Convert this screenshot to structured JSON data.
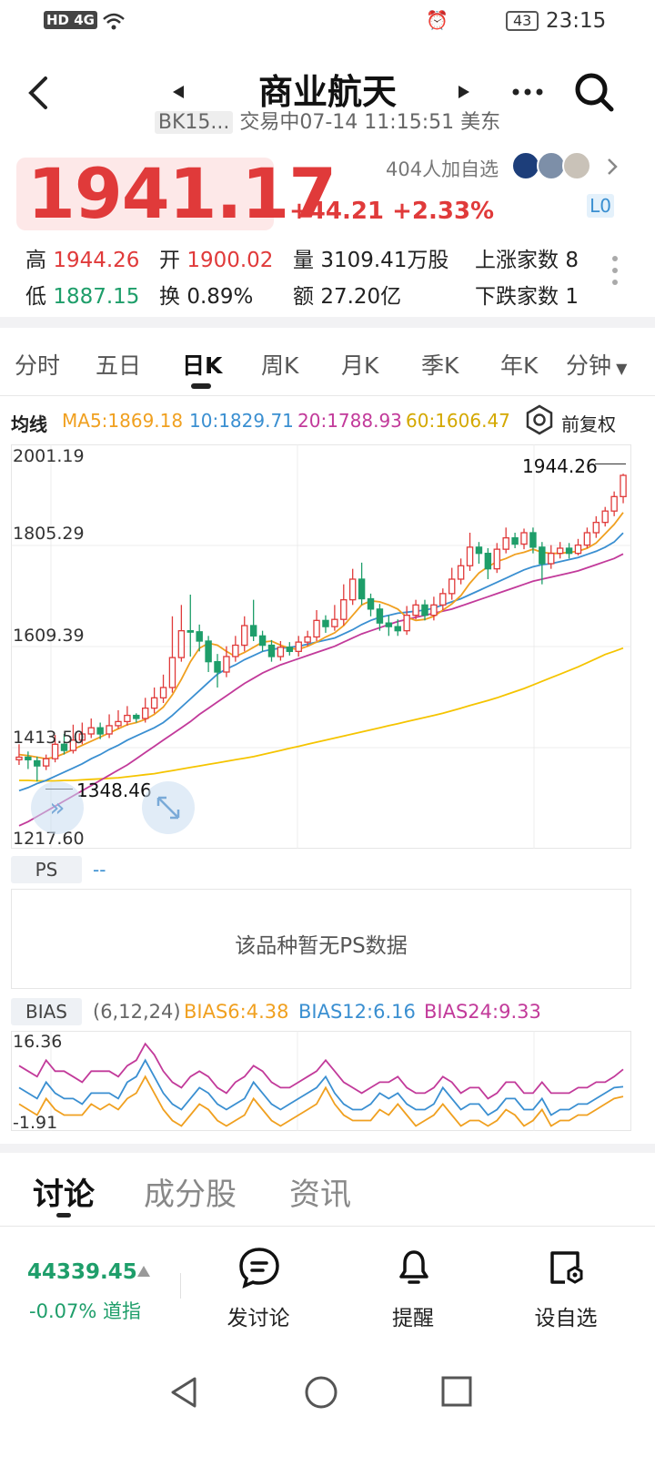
{
  "status_bar": {
    "network": "HD 4G",
    "battery": "43",
    "time": "23:15"
  },
  "header": {
    "title": "商业航天",
    "code": "BK15...",
    "subtitle": "交易中07-14 11:15:51 美东"
  },
  "quote": {
    "price": "1941.17",
    "change": "+44.21",
    "change_pct": "+2.33%",
    "watchers": "404人加自选",
    "level": "L0",
    "high_label": "高",
    "high": "1944.26",
    "open_label": "开",
    "open": "1900.02",
    "volume_label": "量",
    "volume": "3109.41万股",
    "up_label": "上涨家数",
    "up_count": "8",
    "low_label": "低",
    "low": "1887.15",
    "turnover_label": "换",
    "turnover": "0.89%",
    "amount_label": "额",
    "amount": "27.20亿",
    "down_label": "下跌家数",
    "down_count": "1"
  },
  "period_tabs": [
    "分时",
    "五日",
    "日K",
    "周K",
    "月K",
    "季K",
    "年K",
    "分钟"
  ],
  "active_period": "日K",
  "ma_legend": {
    "label": "均线",
    "ma5": "MA5:1869.18",
    "ma10": "10:1829.71",
    "ma20": "20:1788.93",
    "ma60": "60:1606.47",
    "adjust": "前复权"
  },
  "colors": {
    "up": "#e03a3a",
    "down": "#1e9e6a",
    "ma5": "#f0a020",
    "ma10": "#3a8fd1",
    "ma20": "#c23a9a",
    "ma60": "#f5c400"
  },
  "chart_data": {
    "type": "candlestick",
    "y_ticks": [
      "2001.19",
      "1805.29",
      "1609.39",
      "1413.50",
      "1217.60"
    ],
    "ylim": [
      1217.6,
      2001.19
    ],
    "max_label": "1944.26",
    "min_label": "1348.46",
    "candles": [
      [
        1390,
        1395,
        1380,
        1420
      ],
      [
        1395,
        1390,
        1372,
        1406
      ],
      [
        1388,
        1378,
        1348,
        1396
      ],
      [
        1378,
        1392,
        1370,
        1400
      ],
      [
        1392,
        1420,
        1385,
        1438
      ],
      [
        1420,
        1408,
        1400,
        1440
      ],
      [
        1408,
        1428,
        1402,
        1458
      ],
      [
        1428,
        1440,
        1420,
        1462
      ],
      [
        1440,
        1452,
        1432,
        1470
      ],
      [
        1452,
        1440,
        1430,
        1462
      ],
      [
        1440,
        1456,
        1432,
        1478
      ],
      [
        1456,
        1464,
        1450,
        1486
      ],
      [
        1464,
        1476,
        1456,
        1494
      ],
      [
        1476,
        1470,
        1462,
        1480
      ],
      [
        1470,
        1490,
        1462,
        1510
      ],
      [
        1490,
        1510,
        1480,
        1530
      ],
      [
        1510,
        1530,
        1500,
        1555
      ],
      [
        1530,
        1588,
        1520,
        1668
      ],
      [
        1588,
        1640,
        1580,
        1690
      ],
      [
        1640,
        1638,
        1590,
        1710
      ],
      [
        1638,
        1620,
        1600,
        1652
      ],
      [
        1620,
        1580,
        1560,
        1630
      ],
      [
        1580,
        1560,
        1530,
        1595
      ],
      [
        1560,
        1590,
        1550,
        1610
      ],
      [
        1590,
        1612,
        1580,
        1630
      ],
      [
        1612,
        1650,
        1600,
        1668
      ],
      [
        1650,
        1630,
        1620,
        1700
      ],
      [
        1630,
        1612,
        1600,
        1640
      ],
      [
        1612,
        1590,
        1580,
        1622
      ],
      [
        1590,
        1608,
        1582,
        1620
      ],
      [
        1608,
        1600,
        1592,
        1618
      ],
      [
        1600,
        1618,
        1590,
        1630
      ],
      [
        1618,
        1628,
        1610,
        1640
      ],
      [
        1628,
        1660,
        1620,
        1680
      ],
      [
        1660,
        1648,
        1636,
        1670
      ],
      [
        1648,
        1662,
        1640,
        1690
      ],
      [
        1662,
        1700,
        1650,
        1730
      ],
      [
        1700,
        1740,
        1690,
        1760
      ],
      [
        1740,
        1702,
        1690,
        1772
      ],
      [
        1702,
        1682,
        1668,
        1712
      ],
      [
        1682,
        1655,
        1640,
        1692
      ],
      [
        1655,
        1648,
        1630,
        1670
      ],
      [
        1648,
        1640,
        1630,
        1662
      ],
      [
        1640,
        1670,
        1632,
        1688
      ],
      [
        1670,
        1690,
        1662,
        1700
      ],
      [
        1690,
        1670,
        1660,
        1700
      ],
      [
        1670,
        1690,
        1660,
        1706
      ],
      [
        1690,
        1712,
        1680,
        1722
      ],
      [
        1712,
        1740,
        1700,
        1762
      ],
      [
        1740,
        1766,
        1730,
        1780
      ],
      [
        1766,
        1802,
        1756,
        1830
      ],
      [
        1802,
        1790,
        1770,
        1812
      ],
      [
        1790,
        1760,
        1740,
        1800
      ],
      [
        1760,
        1798,
        1752,
        1810
      ],
      [
        1798,
        1820,
        1790,
        1840
      ],
      [
        1820,
        1808,
        1800,
        1830
      ],
      [
        1808,
        1830,
        1798,
        1838
      ],
      [
        1830,
        1802,
        1790,
        1840
      ],
      [
        1802,
        1770,
        1730,
        1812
      ],
      [
        1770,
        1790,
        1760,
        1806
      ],
      [
        1790,
        1800,
        1780,
        1812
      ],
      [
        1800,
        1790,
        1780,
        1810
      ],
      [
        1790,
        1806,
        1786,
        1818
      ],
      [
        1806,
        1830,
        1800,
        1840
      ],
      [
        1830,
        1850,
        1820,
        1862
      ],
      [
        1850,
        1872,
        1842,
        1880
      ],
      [
        1872,
        1900,
        1862,
        1910
      ],
      [
        1900,
        1941.17,
        1887.15,
        1944.26
      ]
    ],
    "ma5": [
      1400,
      1398,
      1395,
      1392,
      1395,
      1402,
      1410,
      1418,
      1426,
      1434,
      1442,
      1450,
      1458,
      1462,
      1468,
      1478,
      1492,
      1516,
      1546,
      1580,
      1606,
      1616,
      1612,
      1600,
      1590,
      1598,
      1608,
      1618,
      1620,
      1612,
      1606,
      1604,
      1610,
      1618,
      1628,
      1636,
      1650,
      1670,
      1690,
      1698,
      1696,
      1690,
      1682,
      1666,
      1660,
      1662,
      1668,
      1680,
      1692,
      1708,
      1732,
      1752,
      1764,
      1774,
      1780,
      1788,
      1792,
      1798,
      1792,
      1790,
      1790,
      1792,
      1794,
      1800,
      1810,
      1828,
      1846,
      1869.18
    ],
    "ma10": [
      1330,
      1336,
      1344,
      1350,
      1358,
      1366,
      1374,
      1382,
      1392,
      1400,
      1410,
      1418,
      1428,
      1436,
      1444,
      1452,
      1462,
      1476,
      1492,
      1508,
      1524,
      1540,
      1556,
      1566,
      1574,
      1584,
      1592,
      1600,
      1604,
      1606,
      1608,
      1610,
      1614,
      1618,
      1622,
      1626,
      1634,
      1642,
      1652,
      1660,
      1666,
      1670,
      1674,
      1676,
      1678,
      1680,
      1684,
      1690,
      1696,
      1702,
      1710,
      1718,
      1726,
      1734,
      1742,
      1750,
      1758,
      1764,
      1768,
      1770,
      1774,
      1778,
      1782,
      1788,
      1794,
      1802,
      1812,
      1829.71
    ],
    "ma20": [
      1262,
      1270,
      1280,
      1290,
      1300,
      1310,
      1320,
      1330,
      1340,
      1350,
      1360,
      1370,
      1380,
      1392,
      1404,
      1416,
      1428,
      1440,
      1452,
      1464,
      1478,
      1490,
      1502,
      1514,
      1526,
      1538,
      1548,
      1558,
      1566,
      1574,
      1580,
      1586,
      1592,
      1598,
      1604,
      1610,
      1618,
      1626,
      1634,
      1640,
      1646,
      1652,
      1658,
      1662,
      1666,
      1670,
      1674,
      1678,
      1682,
      1688,
      1694,
      1700,
      1706,
      1712,
      1718,
      1724,
      1730,
      1736,
      1740,
      1744,
      1748,
      1752,
      1756,
      1762,
      1768,
      1774,
      1780,
      1788.93
    ],
    "ma60": [
      1350,
      1350,
      1349,
      1349,
      1349,
      1350,
      1350,
      1351,
      1352,
      1353,
      1354,
      1355,
      1357,
      1359,
      1361,
      1363,
      1366,
      1369,
      1372,
      1375,
      1378,
      1381,
      1384,
      1387,
      1390,
      1393,
      1396,
      1400,
      1404,
      1408,
      1412,
      1416,
      1420,
      1424,
      1428,
      1432,
      1436,
      1440,
      1444,
      1448,
      1452,
      1456,
      1460,
      1464,
      1468,
      1472,
      1476,
      1480,
      1485,
      1490,
      1495,
      1500,
      1505,
      1510,
      1516,
      1522,
      1528,
      1535,
      1542,
      1549,
      1556,
      1563,
      1570,
      1578,
      1586,
      1594,
      1600,
      1606.47
    ]
  },
  "ps_panel": {
    "label": "PS",
    "value": "--",
    "empty_text": "该品种暂无PS数据"
  },
  "bias_panel": {
    "label": "BIAS",
    "params": "(6,12,24)",
    "bias6": "BIAS6:4.38",
    "bias12": "BIAS12:6.16",
    "bias24": "BIAS24:9.33",
    "y_top": "16.36",
    "y_bottom": "-1.91",
    "ylim": [
      -1.91,
      16.36
    ],
    "bias6_series": [
      3,
      2,
      1,
      4,
      2,
      1,
      1,
      1,
      3,
      2,
      3,
      2,
      4,
      5,
      8,
      5,
      2,
      0,
      -1,
      1,
      3,
      2,
      0,
      -1,
      0,
      1,
      4,
      2,
      0,
      -1,
      0,
      1,
      2,
      3,
      6,
      3,
      1,
      0,
      0,
      0,
      2,
      1,
      3,
      1,
      -1,
      0,
      1,
      3,
      1,
      -1,
      0,
      0,
      -1,
      0,
      2,
      1,
      -1,
      0,
      2,
      -1,
      0,
      0,
      1,
      1,
      2,
      3,
      4,
      4.38
    ],
    "bias12_series": [
      6,
      5,
      4,
      7,
      5,
      4,
      4,
      3,
      5,
      5,
      5,
      4,
      7,
      8,
      11,
      8,
      5,
      3,
      2,
      4,
      6,
      5,
      3,
      2,
      3,
      4,
      7,
      5,
      3,
      2,
      3,
      4,
      5,
      6,
      8,
      5,
      3,
      2,
      2,
      3,
      5,
      4,
      5,
      3,
      2,
      2,
      3,
      6,
      4,
      2,
      3,
      3,
      1,
      2,
      4,
      4,
      2,
      2,
      4,
      1,
      2,
      2,
      3,
      3,
      4,
      5,
      6,
      6.16
    ],
    "bias24_series": [
      10,
      9,
      8,
      11,
      9,
      9,
      8,
      7,
      9,
      9,
      9,
      8,
      10,
      11,
      14,
      12,
      9,
      7,
      6,
      8,
      9,
      8,
      6,
      5,
      7,
      8,
      10,
      9,
      7,
      6,
      6,
      7,
      8,
      9,
      11,
      9,
      7,
      6,
      5,
      6,
      7,
      7,
      8,
      6,
      5,
      5,
      6,
      8,
      7,
      5,
      6,
      6,
      4,
      5,
      7,
      7,
      5,
      5,
      7,
      5,
      5,
      5,
      6,
      6,
      7,
      7,
      8,
      9.33
    ]
  },
  "bottom_tabs": [
    "讨论",
    "成分股",
    "资讯"
  ],
  "active_bottom_tab": "讨论",
  "index_ticker": {
    "value": "44339.45",
    "change": "-0.07%",
    "name": "道指"
  },
  "actions": {
    "discuss": "发讨论",
    "remind": "提醒",
    "watchlist": "设自选"
  }
}
